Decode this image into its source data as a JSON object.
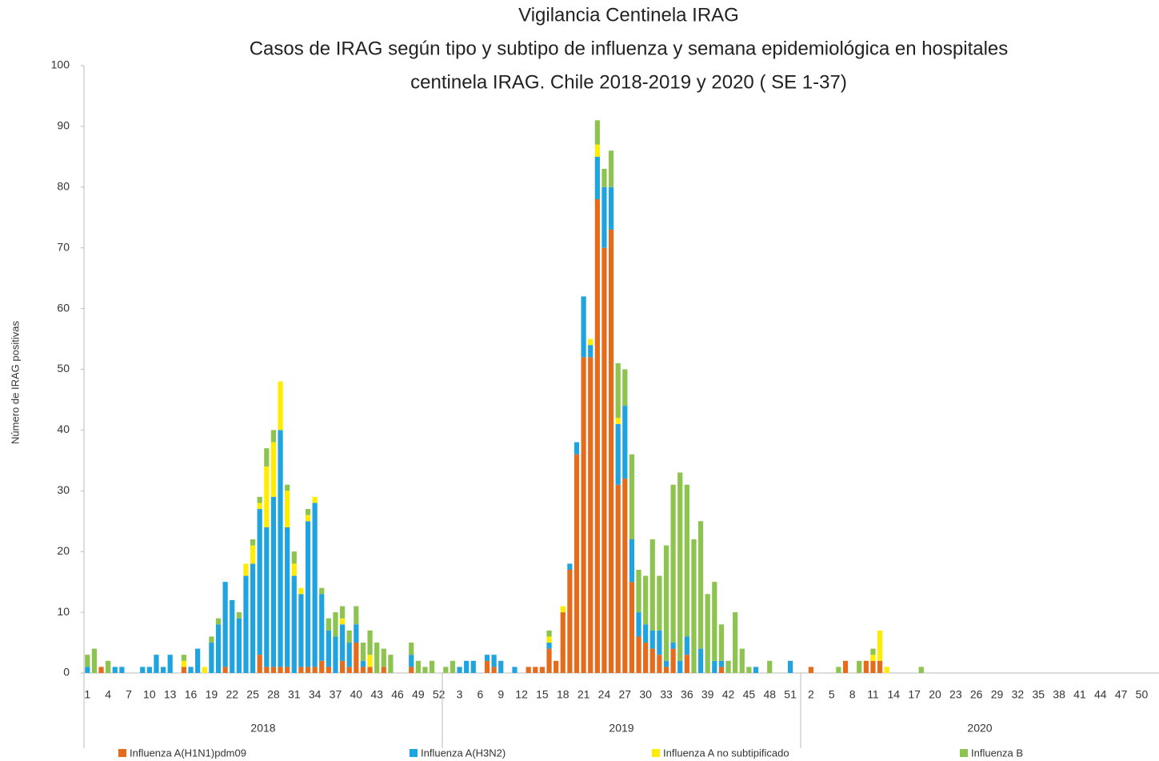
{
  "chart_data": {
    "type": "stacked_bar",
    "title": [
      "Vigilancia Centinela IRAG",
      "Casos de IRAG según tipo y subtipo de influenza y semana epidemiológica en hospitales",
      "centinela IRAG.  Chile 2018-2019 y 2020 ( SE 1-37)"
    ],
    "y_label": "Número de IRAG positivas",
    "ylim": [
      0,
      100
    ],
    "yticks": [
      0,
      10,
      20,
      30,
      40,
      50,
      60,
      70,
      80,
      90,
      100
    ],
    "grid": false,
    "legend": "bottom",
    "groups": [
      "2018",
      "2019",
      "2020"
    ],
    "categories": [
      "1",
      null,
      null,
      "4",
      null,
      null,
      "7",
      null,
      null,
      "10",
      null,
      null,
      "13",
      null,
      null,
      "16",
      null,
      null,
      "19",
      null,
      null,
      "22",
      null,
      null,
      "25",
      null,
      null,
      "28",
      null,
      null,
      "31",
      null,
      null,
      "34",
      null,
      null,
      "37",
      null,
      null,
      "40",
      null,
      null,
      "43",
      null,
      null,
      "46",
      null,
      null,
      "49",
      null,
      null,
      "52",
      null,
      null,
      "3",
      null,
      null,
      "6",
      null,
      null,
      "9",
      null,
      null,
      "12",
      null,
      null,
      "15",
      null,
      null,
      "18",
      null,
      null,
      "21",
      null,
      null,
      "24",
      null,
      null,
      "27",
      null,
      null,
      "30",
      null,
      null,
      "33",
      null,
      null,
      "36",
      null,
      null,
      "39",
      null,
      null,
      "42",
      null,
      null,
      "45",
      null,
      null,
      "48",
      null,
      null,
      "51",
      null,
      null,
      "2",
      null,
      null,
      "5",
      null,
      null,
      "8",
      null,
      null,
      "11",
      null,
      null,
      "14",
      null,
      null,
      "17",
      null,
      null,
      "20",
      null,
      null,
      "23",
      null,
      null,
      "26",
      null,
      null,
      "29",
      null,
      null,
      "32",
      null,
      null,
      "35",
      null,
      null,
      "38",
      null,
      null,
      "41",
      null,
      null,
      "44",
      null,
      null,
      "47",
      null,
      null,
      "50",
      null,
      null
    ],
    "series": [
      {
        "name": "Influenza A(H1N1)pdm09",
        "color": "#e46c1c",
        "values": [
          0,
          0,
          1,
          0,
          0,
          0,
          0,
          0,
          0,
          0,
          0,
          0,
          0,
          0,
          1,
          0,
          0,
          0,
          0,
          0,
          1,
          0,
          0,
          0,
          0,
          3,
          1,
          1,
          1,
          1,
          0,
          1,
          1,
          1,
          2,
          1,
          0,
          2,
          1,
          5,
          1,
          1,
          0,
          1,
          0,
          0,
          0,
          1,
          0,
          0,
          0,
          0,
          0,
          0,
          0,
          0,
          0,
          0,
          2,
          1,
          0,
          0,
          0,
          0,
          1,
          1,
          1,
          4,
          2,
          10,
          17,
          36,
          52,
          52,
          78,
          70,
          73,
          31,
          32,
          15,
          6,
          5,
          4,
          3,
          1,
          4,
          0,
          3,
          0,
          0,
          0,
          0,
          1,
          0,
          0,
          0,
          0,
          0,
          0,
          0,
          0,
          0,
          0,
          0,
          0,
          1,
          0,
          0,
          0,
          0,
          2,
          0,
          0,
          2,
          2,
          2,
          0,
          0,
          0,
          0,
          0,
          0,
          0,
          0,
          0,
          0,
          0,
          0,
          0,
          0,
          0,
          0,
          0,
          0,
          0,
          0,
          0,
          0,
          0,
          0,
          0,
          0,
          0,
          0,
          0,
          0,
          0,
          0,
          0,
          0,
          0,
          0,
          0,
          0,
          0,
          0
        ]
      },
      {
        "name": "Influenza A(H3N2)",
        "color": "#20a4e0",
        "values": [
          1,
          0,
          0,
          0,
          1,
          1,
          0,
          0,
          1,
          1,
          3,
          1,
          3,
          0,
          0,
          1,
          4,
          0,
          5,
          8,
          14,
          12,
          9,
          16,
          18,
          24,
          23,
          28,
          39,
          23,
          16,
          12,
          24,
          27,
          11,
          6,
          6,
          6,
          4,
          3,
          1,
          0,
          0,
          0,
          0,
          0,
          0,
          2,
          0,
          0,
          0,
          0,
          0,
          0,
          1,
          2,
          2,
          0,
          1,
          2,
          2,
          0,
          1,
          0,
          0,
          0,
          0,
          1,
          0,
          0,
          1,
          2,
          10,
          2,
          7,
          10,
          7,
          10,
          12,
          7,
          4,
          3,
          3,
          4,
          1,
          1,
          2,
          3,
          0,
          4,
          0,
          2,
          1,
          0,
          0,
          0,
          0,
          1,
          0,
          0,
          0,
          0,
          2,
          0,
          0,
          0,
          0,
          0,
          0,
          0,
          0,
          0,
          0,
          0,
          0,
          0,
          0,
          0,
          0,
          0,
          0,
          0,
          0,
          0,
          0,
          0,
          0,
          0,
          0,
          0,
          0,
          0,
          0,
          0,
          0,
          0,
          0,
          0,
          0,
          0,
          0,
          0,
          0,
          0,
          0,
          0,
          0,
          0,
          0,
          0,
          0,
          0,
          0,
          0,
          0,
          0
        ]
      },
      {
        "name": "Influenza A no subtipificado",
        "color": "#ffec00",
        "values": [
          0,
          0,
          0,
          0,
          0,
          0,
          0,
          0,
          0,
          0,
          0,
          0,
          0,
          0,
          1,
          0,
          0,
          1,
          0,
          0,
          0,
          0,
          0,
          2,
          3,
          1,
          10,
          9,
          8,
          6,
          2,
          1,
          1,
          1,
          0,
          0,
          0,
          1,
          0,
          0,
          0,
          2,
          0,
          0,
          0,
          0,
          0,
          0,
          0,
          0,
          0,
          0,
          0,
          0,
          0,
          0,
          0,
          0,
          0,
          0,
          0,
          0,
          0,
          0,
          0,
          0,
          0,
          1,
          0,
          1,
          0,
          0,
          0,
          1,
          2,
          0,
          0,
          1,
          0,
          0,
          0,
          0,
          0,
          0,
          0,
          0,
          0,
          0,
          0,
          0,
          0,
          0,
          0,
          0,
          0,
          0,
          0,
          0,
          0,
          0,
          0,
          0,
          0,
          0,
          0,
          0,
          0,
          0,
          0,
          0,
          0,
          0,
          0,
          0,
          1,
          5,
          1,
          0,
          0,
          0,
          0,
          0,
          0,
          0,
          0,
          0,
          0,
          0,
          0,
          0,
          0,
          0,
          0,
          0,
          0,
          0,
          0,
          0,
          0,
          0,
          0,
          0,
          0,
          0,
          0,
          0,
          0,
          0,
          0,
          0,
          0,
          0,
          0,
          0,
          0,
          0
        ]
      },
      {
        "name": "Influenza  B",
        "color": "#8dc34f",
        "values": [
          2,
          4,
          0,
          2,
          0,
          0,
          0,
          0,
          0,
          0,
          0,
          0,
          0,
          0,
          1,
          0,
          0,
          0,
          1,
          1,
          0,
          0,
          1,
          0,
          1,
          1,
          3,
          2,
          0,
          1,
          2,
          0,
          1,
          0,
          1,
          2,
          4,
          2,
          2,
          3,
          3,
          4,
          5,
          3,
          3,
          0,
          0,
          2,
          2,
          1,
          2,
          0,
          1,
          2,
          0,
          0,
          0,
          0,
          0,
          0,
          0,
          0,
          0,
          0,
          0,
          0,
          0,
          1,
          0,
          0,
          0,
          0,
          0,
          0,
          4,
          3,
          6,
          9,
          6,
          14,
          7,
          8,
          15,
          9,
          19,
          26,
          31,
          25,
          22,
          21,
          13,
          13,
          6,
          2,
          10,
          4,
          1,
          0,
          0,
          2,
          0,
          0,
          0,
          0,
          0,
          0,
          0,
          0,
          0,
          1,
          0,
          0,
          2,
          0,
          1,
          0,
          0,
          0,
          0,
          0,
          0,
          1,
          0,
          0,
          0,
          0,
          0,
          0,
          0,
          0,
          0,
          0,
          0,
          0,
          0,
          0,
          0,
          0,
          0,
          0,
          0,
          0,
          0,
          0,
          0,
          0,
          0,
          0,
          0,
          0,
          0,
          0,
          0,
          0,
          0,
          0
        ]
      }
    ]
  }
}
